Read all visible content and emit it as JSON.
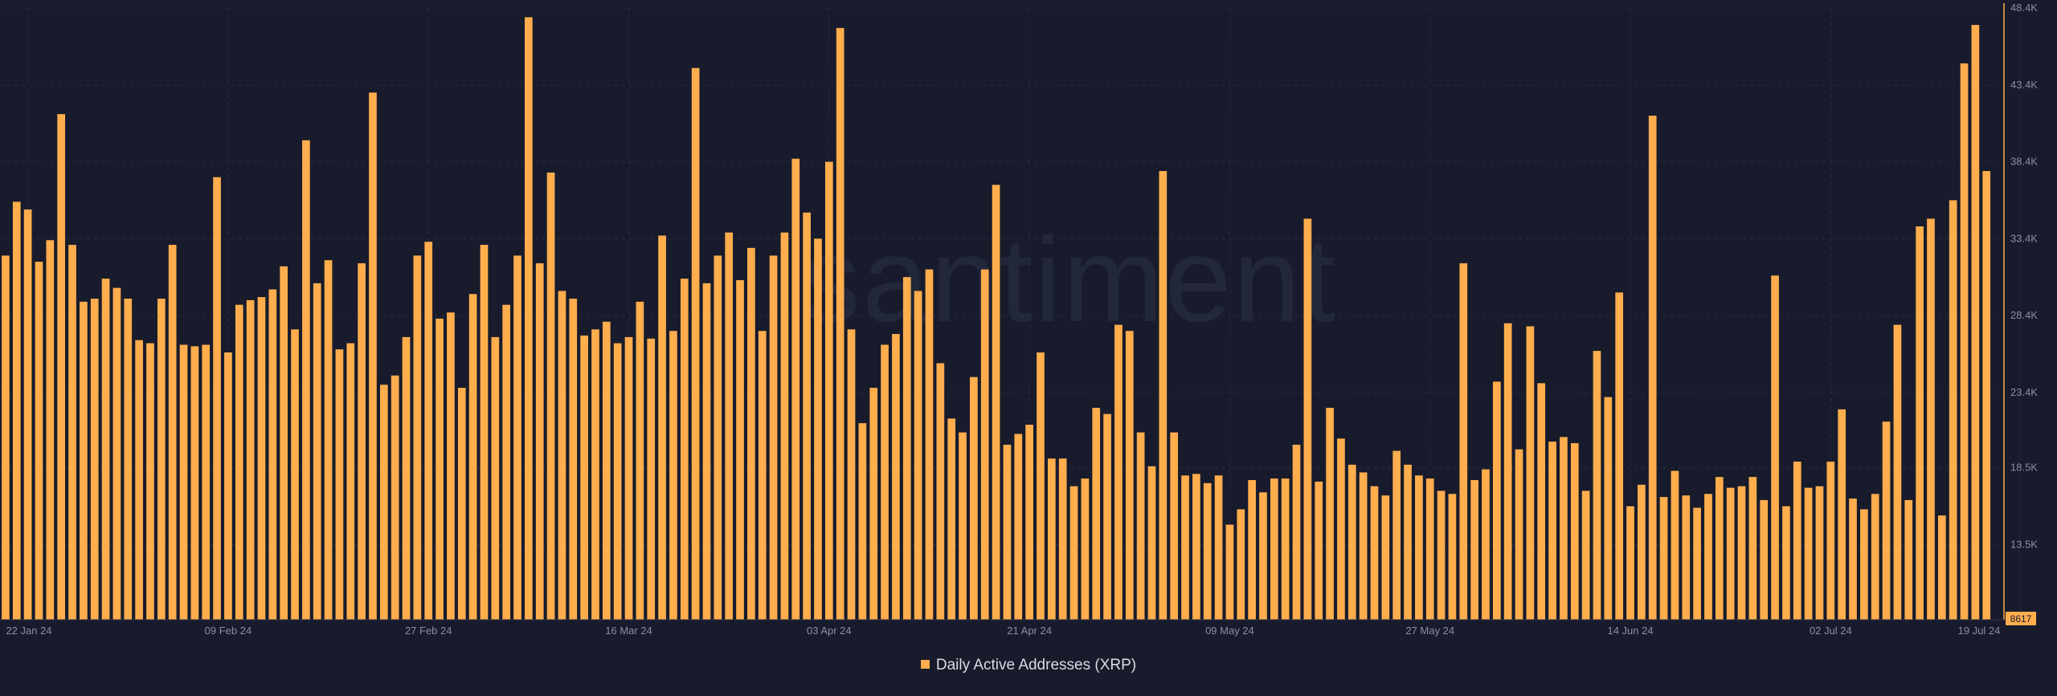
{
  "colors": {
    "background": "#181b2b",
    "bar": "#ffad4d",
    "grid": "#2a2e40",
    "axis_text": "#8a8fa3",
    "watermark": "#23273a"
  },
  "watermark": "santiment",
  "legend": {
    "label": "Daily Active Addresses (XRP)"
  },
  "chart_data": {
    "type": "bar",
    "title": "",
    "xlabel": "",
    "ylabel": "",
    "legend_position": "bottom-center",
    "grid": true,
    "ylim": [
      8617,
      48400
    ],
    "y_ticks": [
      {
        "value": 48400,
        "label": "48.4K"
      },
      {
        "value": 43400,
        "label": "43.4K"
      },
      {
        "value": 38400,
        "label": "38.4K"
      },
      {
        "value": 33400,
        "label": "33.4K"
      },
      {
        "value": 28400,
        "label": "28.4K"
      },
      {
        "value": 23400,
        "label": "23.4K"
      },
      {
        "value": 18500,
        "label": "18.5K"
      },
      {
        "value": 13500,
        "label": "13.5K"
      }
    ],
    "y_min_marker": {
      "value": 8617,
      "label": "8617"
    },
    "x_ticks": [
      {
        "index": 2,
        "label": "22 Jan 24"
      },
      {
        "index": 20,
        "label": "09 Feb 24"
      },
      {
        "index": 38,
        "label": "27 Feb 24"
      },
      {
        "index": 56,
        "label": "16 Mar 24"
      },
      {
        "index": 74,
        "label": "03 Apr 24"
      },
      {
        "index": 92,
        "label": "21 Apr 24"
      },
      {
        "index": 110,
        "label": "09 May 24"
      },
      {
        "index": 128,
        "label": "27 May 24"
      },
      {
        "index": 146,
        "label": "14 Jun 24"
      },
      {
        "index": 164,
        "label": "02 Jul 24"
      },
      {
        "index": 181,
        "label": "19 Jul 24"
      }
    ],
    "series": [
      {
        "name": "Daily Active Addresses (XRP)",
        "values": [
          32300,
          35800,
          35300,
          31900,
          33300,
          41500,
          33000,
          29300,
          29500,
          30800,
          30200,
          29500,
          26800,
          26600,
          29500,
          33000,
          26500,
          26400,
          26500,
          37400,
          26000,
          29100,
          29400,
          29600,
          30100,
          31600,
          27500,
          39800,
          30500,
          32000,
          26200,
          26600,
          31800,
          42900,
          23900,
          24500,
          27000,
          32300,
          33200,
          28200,
          28600,
          23700,
          29800,
          33000,
          27000,
          29100,
          32300,
          47800,
          31800,
          37700,
          30000,
          29500,
          27100,
          27500,
          28000,
          26600,
          27000,
          29300,
          26900,
          33600,
          27400,
          30800,
          44500,
          30500,
          32300,
          33800,
          30700,
          32800,
          27400,
          32300,
          33800,
          38600,
          35100,
          33400,
          38400,
          47100,
          27500,
          21400,
          23700,
          26500,
          27200,
          30900,
          30000,
          31400,
          25300,
          21700,
          20800,
          24400,
          31400,
          36900,
          20000,
          20700,
          21300,
          26000,
          19100,
          19100,
          17300,
          17800,
          22400,
          22000,
          27800,
          27400,
          20800,
          18600,
          37800,
          20800,
          18000,
          18100,
          17500,
          18000,
          14800,
          15800,
          17700,
          16900,
          17800,
          17800,
          20000,
          34700,
          17600,
          22400,
          20400,
          18700,
          18200,
          17300,
          16700,
          19600,
          18700,
          18000,
          17800,
          17000,
          16800,
          31800,
          17700,
          18400,
          24100,
          27900,
          19700,
          27700,
          24000,
          20200,
          20500,
          20100,
          17000,
          26100,
          23100,
          29900,
          16000,
          17400,
          41400,
          16600,
          18300,
          16700,
          15900,
          16800,
          17900,
          17200,
          17300,
          17900,
          16400,
          31000,
          16000,
          18900,
          17200,
          17300,
          18900,
          22300,
          16500,
          15800,
          16800,
          21500,
          27800,
          16400,
          34200,
          34700,
          15400,
          35900,
          44800,
          47300,
          37800,
          8617
        ]
      }
    ]
  }
}
